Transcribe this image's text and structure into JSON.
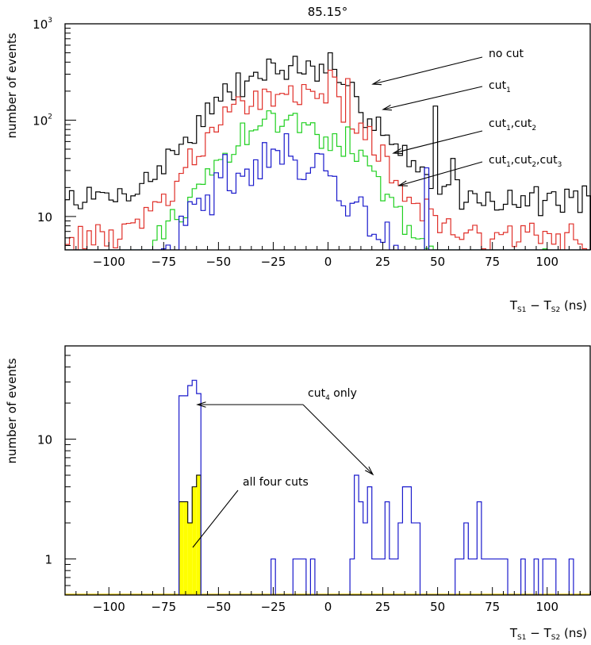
{
  "chart_data": [
    {
      "type": "line",
      "title": "85.15°",
      "ylabel": "number of events",
      "xlabel": {
        "main": "T",
        "sub1": "S1",
        "mid": " − T",
        "sub2": "S2",
        "tail": " (ns)"
      },
      "xlim": [
        -120,
        120
      ],
      "ylim": [
        4.5,
        1000
      ],
      "yscale": "log",
      "bin_width": 2,
      "x_ticks": [
        -100,
        -75,
        -50,
        -25,
        0,
        25,
        50,
        75,
        100
      ],
      "x_tick_labels": [
        "−100",
        "−75",
        "−50",
        "−25",
        "0",
        "25",
        "50",
        "75",
        "100"
      ],
      "y_tick_labels": [
        {
          "value": 10,
          "base": "10",
          "exp": ""
        },
        {
          "value": 100,
          "base": "10",
          "exp": "2"
        },
        {
          "value": 1000,
          "base": "10",
          "exp": "3"
        }
      ],
      "annotations": [
        {
          "text": "no cut",
          "parts": []
        },
        {
          "text": "cut1",
          "parts": [
            {
              "t": "cut"
            },
            {
              "t": "1",
              "sub": true
            }
          ]
        },
        {
          "text": "cut1,cut2",
          "parts": [
            {
              "t": "cut"
            },
            {
              "t": "1",
              "sub": true
            },
            {
              "t": ",cut"
            },
            {
              "t": "2",
              "sub": true
            }
          ]
        },
        {
          "text": "cut1,cut2,cut3",
          "parts": [
            {
              "t": "cut"
            },
            {
              "t": "1",
              "sub": true
            },
            {
              "t": ",cut"
            },
            {
              "t": "2",
              "sub": true
            },
            {
              "t": ",cut"
            },
            {
              "t": "3",
              "sub": true
            }
          ]
        }
      ],
      "series": [
        {
          "name": "no cut",
          "color": "#000000",
          "generator": {
            "base": 15,
            "peak": 330,
            "mu": -18,
            "sigma": 24,
            "seed": 7,
            "noise": 0.28,
            "spikes": [
              [
                0,
                500
              ],
              [
                -5,
                380
              ],
              [
                -28,
                430
              ],
              [
                47,
                140
              ],
              [
                56,
                40
              ]
            ]
          }
        },
        {
          "name": "cut1",
          "color": "#e0302a",
          "generator": {
            "base": 6,
            "peak": 195,
            "mu": -18,
            "sigma": 23,
            "seed": 13,
            "noise": 0.28,
            "spikes": [
              [
                0,
                330
              ],
              [
                2,
                280
              ],
              [
                8,
                270
              ],
              [
                -34,
                200
              ]
            ]
          }
        },
        {
          "name": "cut1,cut2",
          "color": "#20d020",
          "generator": {
            "base": 3,
            "peak": 95,
            "mu": -18,
            "sigma": 22,
            "seed": 29,
            "noise": 0.3,
            "spikes": [
              [
                -28,
                125
              ],
              [
                8,
                85
              ]
            ]
          }
        },
        {
          "name": "cut1,cut2,cut3",
          "color": "#1a1acc",
          "generator": {
            "base": 2,
            "peak": 40,
            "mu": -22,
            "sigma": 22,
            "seed": 41,
            "noise": 0.4,
            "spikes": [
              [
                -26,
                50
              ],
              [
                -48,
                44
              ],
              [
                44,
                32
              ]
            ]
          }
        }
      ]
    },
    {
      "type": "bar",
      "ylabel": "number of events",
      "xlabel": {
        "main": "T",
        "sub1": "S1",
        "mid": " − T",
        "sub2": "S2",
        "tail": " (ns)"
      },
      "xlim": [
        -120,
        120
      ],
      "ylim": [
        0.5,
        60
      ],
      "yscale": "log",
      "bin_width": 2,
      "x_ticks": [
        -100,
        -75,
        -50,
        -25,
        0,
        25,
        50,
        75,
        100
      ],
      "x_tick_labels": [
        "−100",
        "−75",
        "−50",
        "−25",
        "0",
        "25",
        "50",
        "75",
        "100"
      ],
      "y_tick_labels": [
        {
          "value": 1,
          "base": "1",
          "exp": ""
        },
        {
          "value": 10,
          "base": "10",
          "exp": ""
        }
      ],
      "annotations": [
        {
          "text": "cut4 only",
          "parts": [
            {
              "t": "cut"
            },
            {
              "t": "4",
              "sub": true
            },
            {
              "t": " only"
            }
          ]
        },
        {
          "text": "all four cuts",
          "parts": [
            {
              "t": "all four cuts"
            }
          ]
        }
      ],
      "series": [
        {
          "name": "cut4 only",
          "color": "#1a1acc",
          "bins": [
            [
              -68,
              23
            ],
            [
              -66,
              23
            ],
            [
              -64,
              28
            ],
            [
              -62,
              31
            ],
            [
              -60,
              24
            ],
            [
              -26,
              1
            ],
            [
              -16,
              1
            ],
            [
              -14,
              1
            ],
            [
              -12,
              1
            ],
            [
              -8,
              1
            ],
            [
              10,
              1
            ],
            [
              12,
              5
            ],
            [
              14,
              3
            ],
            [
              16,
              2
            ],
            [
              18,
              4
            ],
            [
              20,
              1
            ],
            [
              22,
              1
            ],
            [
              24,
              1
            ],
            [
              26,
              3
            ],
            [
              28,
              1
            ],
            [
              30,
              1
            ],
            [
              32,
              2
            ],
            [
              34,
              4
            ],
            [
              36,
              4
            ],
            [
              38,
              2
            ],
            [
              40,
              2
            ],
            [
              58,
              1
            ],
            [
              60,
              1
            ],
            [
              62,
              2
            ],
            [
              64,
              1
            ],
            [
              66,
              1
            ],
            [
              68,
              3
            ],
            [
              70,
              1
            ],
            [
              72,
              1
            ],
            [
              74,
              1
            ],
            [
              76,
              1
            ],
            [
              78,
              1
            ],
            [
              80,
              1
            ],
            [
              88,
              1
            ],
            [
              94,
              1
            ],
            [
              98,
              1
            ],
            [
              100,
              1
            ],
            [
              102,
              1
            ],
            [
              110,
              1
            ]
          ]
        },
        {
          "name": "all four cuts",
          "color": "#ffff00",
          "edge": "#000000",
          "bins": [
            [
              -68,
              3
            ],
            [
              -66,
              3
            ],
            [
              -64,
              2
            ],
            [
              -62,
              4
            ],
            [
              -60,
              5
            ]
          ]
        }
      ]
    }
  ]
}
